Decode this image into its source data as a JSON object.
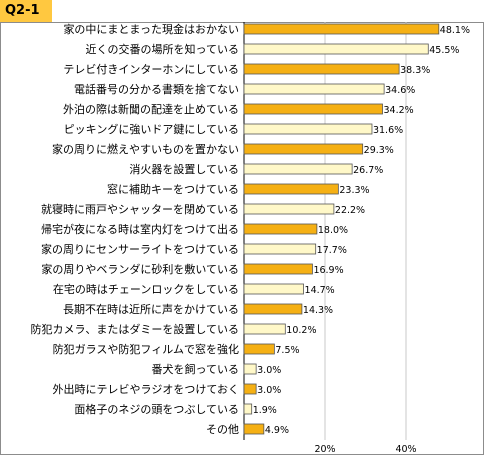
{
  "badge": "Q2-1",
  "colors": {
    "highlight": "#f5b014",
    "normal": "#fff8c8",
    "border": "#555555",
    "grid": "#c8c8c8",
    "badge": "#ffc840"
  },
  "chart_data": {
    "type": "bar",
    "orientation": "horizontal",
    "title": "",
    "xlabel": "",
    "ylabel": "",
    "xlim": [
      0,
      50
    ],
    "ticks": [
      "20%",
      "40%"
    ],
    "grid": true,
    "categories": [
      "家の中にまとまった現金はおかない",
      "近くの交番の場所を知っている",
      "テレビ付きインターホンにしている",
      "電話番号の分かる書類を捨てない",
      "外泊の際は新聞の配達を止めている",
      "ピッキングに強いドア鍵にしている",
      "家の周りに燃えやすいものを置かない",
      "消火器を設置している",
      "窓に補助キーをつけている",
      "就寝時に雨戸やシャッターを閉めている",
      "帰宅が夜になる時は室内灯をつけて出る",
      "家の周りにセンサーライトをつけている",
      "家の周りやベランダに砂利を敷いている",
      "在宅の時はチェーンロックをしている",
      "長期不在時は近所に声をかけている",
      "防犯カメラ、またはダミーを設置している",
      "防犯ガラスや防犯フィルムで窓を強化",
      "番犬を飼っている",
      "外出時にテレビやラジオをつけておく",
      "面格子のネジの頭をつぶしている",
      "その他"
    ],
    "values": [
      48.1,
      45.5,
      38.3,
      34.6,
      34.2,
      31.6,
      29.3,
      26.7,
      23.3,
      22.2,
      18.0,
      17.7,
      16.9,
      14.7,
      14.3,
      10.2,
      7.5,
      3.0,
      3.0,
      1.9,
      4.9
    ],
    "value_labels": [
      "48.1%",
      "45.5%",
      "38.3%",
      "34.6%",
      "34.2%",
      "31.6%",
      "29.3%",
      "26.7%",
      "23.3%",
      "22.2%",
      "18.0%",
      "17.7%",
      "16.9%",
      "14.7%",
      "14.3%",
      "10.2%",
      "7.5%",
      "3.0%",
      "3.0%",
      "1.9%",
      "4.9%"
    ],
    "highlighted": [
      true,
      false,
      true,
      false,
      true,
      false,
      true,
      false,
      true,
      false,
      true,
      false,
      true,
      false,
      true,
      false,
      true,
      false,
      true,
      false,
      true
    ]
  }
}
